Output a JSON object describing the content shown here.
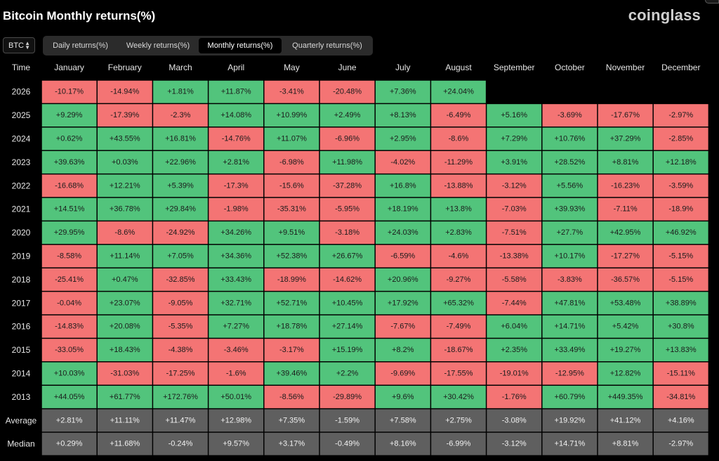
{
  "header": {
    "title": "Bitcoin Monthly returns(%)",
    "brand": "coinglass"
  },
  "coin_select": {
    "value": "BTC"
  },
  "tabs": [
    {
      "label": "Daily returns(%)",
      "active": false
    },
    {
      "label": "Weekly returns(%)",
      "active": false
    },
    {
      "label": "Monthly returns(%)",
      "active": true
    },
    {
      "label": "Quarterly returns(%)",
      "active": false
    }
  ],
  "colors": {
    "positive": "#52c47c",
    "negative": "#f47474",
    "summary": "#5f5f5f",
    "text_dark": "#1b1b1b",
    "text_light": "#f2f2f2"
  },
  "chart_data": {
    "type": "heatmap",
    "corner_label": "Time",
    "columns": [
      "January",
      "February",
      "March",
      "April",
      "May",
      "June",
      "July",
      "August",
      "September",
      "October",
      "November",
      "December"
    ],
    "rows": [
      {
        "label": "2026",
        "values": [
          "-10.17%",
          "-14.94%",
          "+1.81%",
          "+11.87%",
          "-3.41%",
          "-20.48%",
          "+7.36%",
          "+24.04%",
          null,
          null,
          null,
          null
        ]
      },
      {
        "label": "2025",
        "values": [
          "+9.29%",
          "-17.39%",
          "-2.3%",
          "+14.08%",
          "+10.99%",
          "+2.49%",
          "+8.13%",
          "-6.49%",
          "+5.16%",
          "-3.69%",
          "-17.67%",
          "-2.97%"
        ]
      },
      {
        "label": "2024",
        "values": [
          "+0.62%",
          "+43.55%",
          "+16.81%",
          "-14.76%",
          "+11.07%",
          "-6.96%",
          "+2.95%",
          "-8.6%",
          "+7.29%",
          "+10.76%",
          "+37.29%",
          "-2.85%"
        ]
      },
      {
        "label": "2023",
        "values": [
          "+39.63%",
          "+0.03%",
          "+22.96%",
          "+2.81%",
          "-6.98%",
          "+11.98%",
          "-4.02%",
          "-11.29%",
          "+3.91%",
          "+28.52%",
          "+8.81%",
          "+12.18%"
        ]
      },
      {
        "label": "2022",
        "values": [
          "-16.68%",
          "+12.21%",
          "+5.39%",
          "-17.3%",
          "-15.6%",
          "-37.28%",
          "+16.8%",
          "-13.88%",
          "-3.12%",
          "+5.56%",
          "-16.23%",
          "-3.59%"
        ]
      },
      {
        "label": "2021",
        "values": [
          "+14.51%",
          "+36.78%",
          "+29.84%",
          "-1.98%",
          "-35.31%",
          "-5.95%",
          "+18.19%",
          "+13.8%",
          "-7.03%",
          "+39.93%",
          "-7.11%",
          "-18.9%"
        ]
      },
      {
        "label": "2020",
        "values": [
          "+29.95%",
          "-8.6%",
          "-24.92%",
          "+34.26%",
          "+9.51%",
          "-3.18%",
          "+24.03%",
          "+2.83%",
          "-7.51%",
          "+27.7%",
          "+42.95%",
          "+46.92%"
        ]
      },
      {
        "label": "2019",
        "values": [
          "-8.58%",
          "+11.14%",
          "+7.05%",
          "+34.36%",
          "+52.38%",
          "+26.67%",
          "-6.59%",
          "-4.6%",
          "-13.38%",
          "+10.17%",
          "-17.27%",
          "-5.15%"
        ]
      },
      {
        "label": "2018",
        "values": [
          "-25.41%",
          "+0.47%",
          "-32.85%",
          "+33.43%",
          "-18.99%",
          "-14.62%",
          "+20.96%",
          "-9.27%",
          "-5.58%",
          "-3.83%",
          "-36.57%",
          "-5.15%"
        ]
      },
      {
        "label": "2017",
        "values": [
          "-0.04%",
          "+23.07%",
          "-9.05%",
          "+32.71%",
          "+52.71%",
          "+10.45%",
          "+17.92%",
          "+65.32%",
          "-7.44%",
          "+47.81%",
          "+53.48%",
          "+38.89%"
        ]
      },
      {
        "label": "2016",
        "values": [
          "-14.83%",
          "+20.08%",
          "-5.35%",
          "+7.27%",
          "+18.78%",
          "+27.14%",
          "-7.67%",
          "-7.49%",
          "+6.04%",
          "+14.71%",
          "+5.42%",
          "+30.8%"
        ]
      },
      {
        "label": "2015",
        "values": [
          "-33.05%",
          "+18.43%",
          "-4.38%",
          "-3.46%",
          "-3.17%",
          "+15.19%",
          "+8.2%",
          "-18.67%",
          "+2.35%",
          "+33.49%",
          "+19.27%",
          "+13.83%"
        ]
      },
      {
        "label": "2014",
        "values": [
          "+10.03%",
          "-31.03%",
          "-17.25%",
          "-1.6%",
          "+39.46%",
          "+2.2%",
          "-9.69%",
          "-17.55%",
          "-19.01%",
          "-12.95%",
          "+12.82%",
          "-15.11%"
        ]
      },
      {
        "label": "2013",
        "values": [
          "+44.05%",
          "+61.77%",
          "+172.76%",
          "+50.01%",
          "-8.56%",
          "-29.89%",
          "+9.6%",
          "+30.42%",
          "-1.76%",
          "+60.79%",
          "+449.35%",
          "-34.81%"
        ]
      }
    ],
    "summary_rows": [
      {
        "label": "Average",
        "values": [
          "+2.81%",
          "+11.11%",
          "+11.47%",
          "+12.98%",
          "+7.35%",
          "-1.59%",
          "+7.58%",
          "+2.75%",
          "-3.08%",
          "+19.92%",
          "+41.12%",
          "+4.16%"
        ]
      },
      {
        "label": "Median",
        "values": [
          "+0.29%",
          "+11.68%",
          "-0.24%",
          "+9.57%",
          "+3.17%",
          "-0.49%",
          "+8.16%",
          "-6.99%",
          "-3.12%",
          "+14.71%",
          "+8.81%",
          "-2.97%"
        ]
      }
    ]
  }
}
